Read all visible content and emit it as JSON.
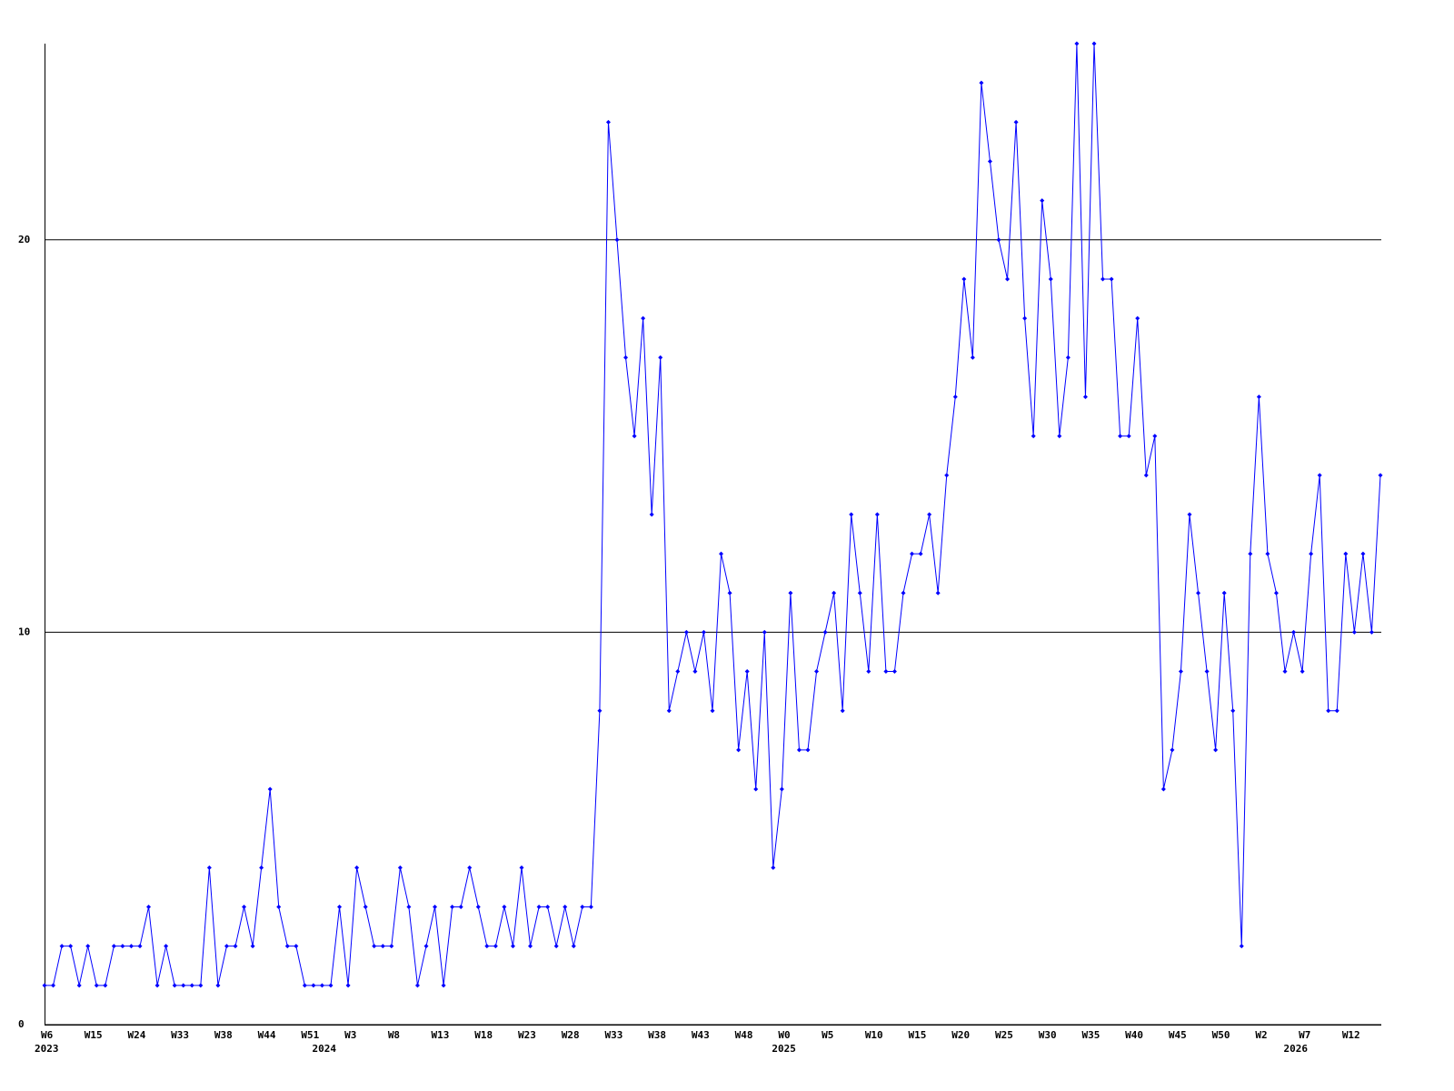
{
  "chart_data": {
    "type": "line",
    "categories": [
      "W6",
      null,
      null,
      null,
      null,
      "W15",
      null,
      null,
      null,
      null,
      "W24",
      null,
      null,
      null,
      null,
      "W33",
      null,
      null,
      null,
      null,
      "W38",
      null,
      null,
      null,
      null,
      "W44",
      null,
      null,
      null,
      null,
      "W51",
      null,
      null,
      null,
      null,
      "W3",
      null,
      null,
      null,
      null,
      "W8",
      null,
      null,
      null,
      null,
      "W13",
      null,
      null,
      null,
      null,
      "W18",
      null,
      null,
      null,
      null,
      "W23",
      null,
      null,
      null,
      null,
      "W28",
      null,
      null,
      null,
      null,
      "W33",
      null,
      null,
      null,
      null,
      "W38",
      null,
      null,
      null,
      null,
      "W43",
      null,
      null,
      null,
      null,
      "W48",
      null,
      null,
      null,
      null,
      "W0",
      null,
      null,
      null,
      null,
      "W5",
      null,
      null,
      null,
      null,
      "W10",
      null,
      null,
      null,
      null,
      "W15",
      null,
      null,
      null,
      null,
      "W20",
      null,
      null,
      null,
      null,
      "W25",
      null,
      null,
      null,
      null,
      "W30",
      null,
      null,
      null,
      null,
      "W35",
      null,
      null,
      null,
      null,
      "W40",
      null,
      null,
      null,
      null,
      "W45",
      null,
      null,
      null,
      null,
      "W50",
      null,
      null,
      null,
      null,
      "W2",
      null,
      null,
      null,
      null,
      "W7",
      null,
      null,
      null,
      null,
      "W12",
      null,
      null,
      null,
      null
    ],
    "x_year_labels": [
      "2023",
      null,
      null,
      null,
      null,
      null,
      null,
      null,
      null,
      null,
      null,
      null,
      null,
      null,
      null,
      null,
      null,
      null,
      null,
      null,
      null,
      null,
      null,
      null,
      null,
      null,
      null,
      null,
      null,
      null,
      null,
      null,
      "2024",
      null,
      null,
      null,
      null,
      null,
      null,
      null,
      null,
      null,
      null,
      null,
      null,
      null,
      null,
      null,
      null,
      null,
      null,
      null,
      null,
      null,
      null,
      null,
      null,
      null,
      null,
      null,
      null,
      null,
      null,
      null,
      null,
      null,
      null,
      null,
      null,
      null,
      null,
      null,
      null,
      null,
      null,
      null,
      null,
      null,
      null,
      null,
      null,
      null,
      null,
      null,
      null,
      "2025",
      null,
      null,
      null,
      null,
      null,
      null,
      null,
      null,
      null,
      null,
      null,
      null,
      null,
      null,
      null,
      null,
      null,
      null,
      null,
      null,
      null,
      null,
      null,
      null,
      null,
      null,
      null,
      null,
      null,
      null,
      null,
      null,
      null,
      null,
      null,
      null,
      null,
      null,
      null,
      null,
      null,
      null,
      null,
      null,
      null,
      null,
      null,
      null,
      null,
      null,
      null,
      null,
      null,
      null,
      null,
      null,
      null,
      null,
      "2026",
      null,
      null,
      null,
      null,
      null,
      null,
      null,
      null,
      null,
      null,
      null,
      null,
      null,
      null,
      null,
      null
    ],
    "values": [
      1,
      1,
      2,
      2,
      1,
      2,
      1,
      1,
      2,
      2,
      2,
      2,
      3,
      1,
      2,
      1,
      1,
      1,
      1,
      4,
      1,
      2,
      2,
      3,
      2,
      4,
      6,
      3,
      2,
      2,
      1,
      1,
      1,
      1,
      3,
      1,
      4,
      3,
      2,
      2,
      2,
      4,
      3,
      1,
      2,
      3,
      1,
      3,
      3,
      4,
      3,
      2,
      2,
      3,
      2,
      4,
      2,
      3,
      3,
      2,
      3,
      2,
      3,
      3,
      8,
      23,
      20,
      17,
      15,
      18,
      13,
      17,
      8,
      9,
      10,
      9,
      10,
      8,
      12,
      11,
      7,
      9,
      6,
      10,
      4,
      6,
      11,
      7,
      7,
      9,
      10,
      11,
      8,
      13,
      11,
      9,
      13,
      9,
      9,
      11,
      12,
      12,
      13,
      11,
      14,
      16,
      19,
      17,
      24,
      22,
      20,
      19,
      23,
      18,
      15,
      21,
      19,
      15,
      17,
      25,
      16,
      25,
      19,
      19,
      15,
      15,
      18,
      14,
      15,
      6,
      7,
      9,
      13,
      11,
      9,
      7,
      11,
      8,
      2,
      12,
      16,
      12,
      11,
      9,
      10,
      9,
      12,
      14,
      8,
      8,
      12,
      10,
      12,
      10,
      14
    ],
    "color": "#0000ff",
    "ylim": [
      0,
      25
    ],
    "yticks": [
      0,
      10,
      20
    ],
    "grid": true
  }
}
